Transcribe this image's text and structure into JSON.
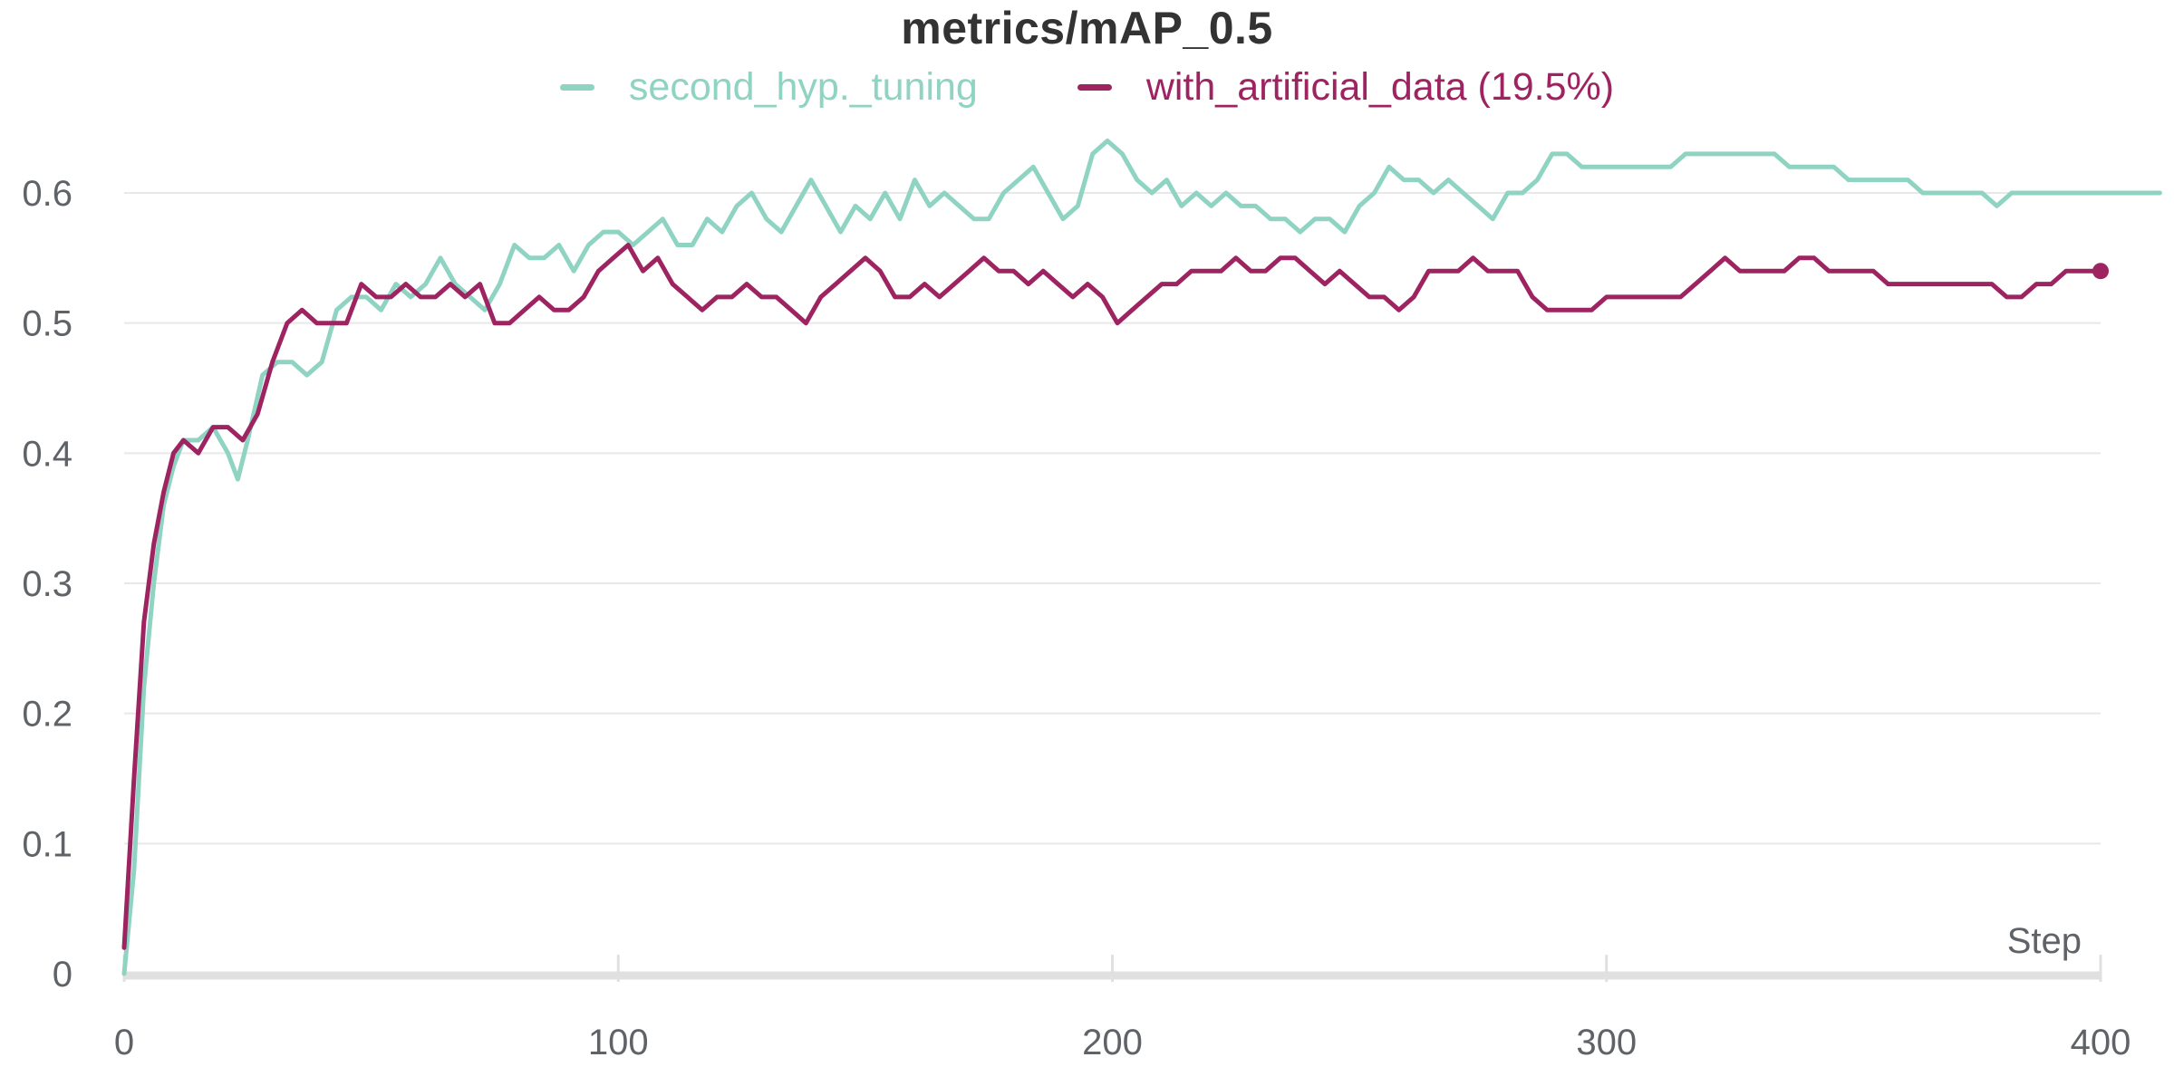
{
  "chart_data": {
    "type": "line",
    "title": "metrics/mAP_0.5",
    "xlabel": "Step",
    "ylabel": "",
    "xlim": [
      0,
      400
    ],
    "ylim": [
      0,
      0.6
    ],
    "xticks": [
      "0",
      "100",
      "200",
      "300",
      "400"
    ],
    "yticks": [
      "0",
      "0.1",
      "0.2",
      "0.3",
      "0.4",
      "0.5",
      "0.6"
    ],
    "grid": "horizontal",
    "legend_position": "top-center",
    "colors": {
      "axis": "#e0e0e0",
      "grid": "#e8e8e8",
      "text": "#5f6368",
      "title": "#333333"
    },
    "series": [
      {
        "name": "second_hyp._tuning",
        "color": "#8fd3c2",
        "x": [
          0,
          2,
          4,
          6,
          8,
          10,
          12,
          15,
          18,
          21,
          23,
          25,
          28,
          31,
          34,
          37,
          40,
          43,
          46,
          49,
          52,
          55,
          58,
          61,
          64,
          67,
          70,
          73,
          76,
          79,
          82,
          85,
          88,
          91,
          94,
          97,
          100,
          103,
          106,
          109,
          112,
          115,
          118,
          121,
          124,
          127,
          130,
          133,
          136,
          139,
          142,
          145,
          148,
          151,
          154,
          157,
          160,
          163,
          166,
          169,
          172,
          175,
          178,
          181,
          184,
          187,
          190,
          193,
          196,
          199,
          202,
          205,
          208,
          211,
          214,
          217,
          220,
          223,
          226,
          229,
          232,
          235,
          238,
          241,
          244,
          247,
          250,
          253,
          256,
          259,
          262,
          265,
          268,
          271,
          274,
          277,
          280,
          283,
          286,
          289,
          292,
          295,
          298,
          301,
          304,
          307,
          310,
          313,
          316,
          319,
          322,
          325,
          328,
          331,
          334,
          337,
          340,
          343,
          346,
          349,
          352,
          355,
          358,
          361,
          364,
          367,
          370,
          373,
          376,
          379,
          382,
          385,
          388,
          391,
          394,
          397,
          400,
          404,
          408,
          412
        ],
        "values": [
          0.0,
          0.08,
          0.22,
          0.3,
          0.36,
          0.39,
          0.41,
          0.41,
          0.42,
          0.4,
          0.38,
          0.41,
          0.46,
          0.47,
          0.47,
          0.46,
          0.47,
          0.51,
          0.52,
          0.52,
          0.51,
          0.53,
          0.52,
          0.53,
          0.55,
          0.53,
          0.52,
          0.51,
          0.53,
          0.56,
          0.55,
          0.55,
          0.56,
          0.54,
          0.56,
          0.57,
          0.57,
          0.56,
          0.57,
          0.58,
          0.56,
          0.56,
          0.58,
          0.57,
          0.59,
          0.6,
          0.58,
          0.57,
          0.59,
          0.61,
          0.59,
          0.57,
          0.59,
          0.58,
          0.6,
          0.58,
          0.61,
          0.59,
          0.6,
          0.59,
          0.58,
          0.58,
          0.6,
          0.61,
          0.62,
          0.6,
          0.58,
          0.59,
          0.63,
          0.64,
          0.63,
          0.61,
          0.6,
          0.61,
          0.59,
          0.6,
          0.59,
          0.6,
          0.59,
          0.59,
          0.58,
          0.58,
          0.57,
          0.58,
          0.58,
          0.57,
          0.59,
          0.6,
          0.62,
          0.61,
          0.61,
          0.6,
          0.61,
          0.6,
          0.59,
          0.58,
          0.6,
          0.6,
          0.61,
          0.63,
          0.63,
          0.62,
          0.62,
          0.62,
          0.62,
          0.62,
          0.62,
          0.62,
          0.63,
          0.63,
          0.63,
          0.63,
          0.63,
          0.63,
          0.63,
          0.62,
          0.62,
          0.62,
          0.62,
          0.61,
          0.61,
          0.61,
          0.61,
          0.61,
          0.6,
          0.6,
          0.6,
          0.6,
          0.6,
          0.59,
          0.6,
          0.6,
          0.6,
          0.6,
          0.6,
          0.6,
          0.6,
          0.6,
          0.6,
          0.6
        ]
      },
      {
        "name": "with_artificial_data (19.5%)",
        "color": "#9e2461",
        "x": [
          0,
          2,
          4,
          6,
          8,
          10,
          12,
          15,
          18,
          21,
          24,
          27,
          30,
          33,
          36,
          39,
          42,
          45,
          48,
          51,
          54,
          57,
          60,
          63,
          66,
          69,
          72,
          75,
          78,
          81,
          84,
          87,
          90,
          93,
          96,
          99,
          102,
          105,
          108,
          111,
          114,
          117,
          120,
          123,
          126,
          129,
          132,
          135,
          138,
          141,
          144,
          147,
          150,
          153,
          156,
          159,
          162,
          165,
          168,
          171,
          174,
          177,
          180,
          183,
          186,
          189,
          192,
          195,
          198,
          201,
          204,
          207,
          210,
          213,
          216,
          219,
          222,
          225,
          228,
          231,
          234,
          237,
          240,
          243,
          246,
          249,
          252,
          255,
          258,
          261,
          264,
          267,
          270,
          273,
          276,
          279,
          282,
          285,
          288,
          291,
          294,
          297,
          300,
          303,
          306,
          309,
          312,
          315,
          318,
          321,
          324,
          327,
          330,
          333,
          336,
          339,
          342,
          345,
          348,
          351,
          354,
          357,
          360,
          363,
          366,
          369,
          372,
          375,
          378,
          381,
          384,
          387,
          390,
          393,
          396,
          400
        ],
        "values": [
          0.02,
          0.15,
          0.27,
          0.33,
          0.37,
          0.4,
          0.41,
          0.4,
          0.42,
          0.42,
          0.41,
          0.43,
          0.47,
          0.5,
          0.51,
          0.5,
          0.5,
          0.5,
          0.53,
          0.52,
          0.52,
          0.53,
          0.52,
          0.52,
          0.53,
          0.52,
          0.53,
          0.5,
          0.5,
          0.51,
          0.52,
          0.51,
          0.51,
          0.52,
          0.54,
          0.55,
          0.56,
          0.54,
          0.55,
          0.53,
          0.52,
          0.51,
          0.52,
          0.52,
          0.53,
          0.52,
          0.52,
          0.51,
          0.5,
          0.52,
          0.53,
          0.54,
          0.55,
          0.54,
          0.52,
          0.52,
          0.53,
          0.52,
          0.53,
          0.54,
          0.55,
          0.54,
          0.54,
          0.53,
          0.54,
          0.53,
          0.52,
          0.53,
          0.52,
          0.5,
          0.51,
          0.52,
          0.53,
          0.53,
          0.54,
          0.54,
          0.54,
          0.55,
          0.54,
          0.54,
          0.55,
          0.55,
          0.54,
          0.53,
          0.54,
          0.53,
          0.52,
          0.52,
          0.51,
          0.52,
          0.54,
          0.54,
          0.54,
          0.55,
          0.54,
          0.54,
          0.54,
          0.52,
          0.51,
          0.51,
          0.51,
          0.51,
          0.52,
          0.52,
          0.52,
          0.52,
          0.52,
          0.52,
          0.53,
          0.54,
          0.55,
          0.54,
          0.54,
          0.54,
          0.54,
          0.55,
          0.55,
          0.54,
          0.54,
          0.54,
          0.54,
          0.53,
          0.53,
          0.53,
          0.53,
          0.53,
          0.53,
          0.53,
          0.53,
          0.52,
          0.52,
          0.53,
          0.53,
          0.54,
          0.54,
          0.54
        ]
      }
    ]
  }
}
